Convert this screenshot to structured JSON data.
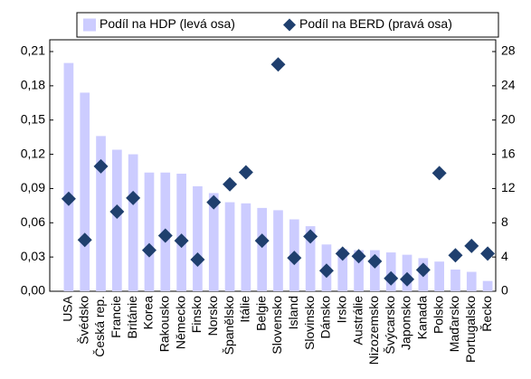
{
  "chart_data": {
    "type": "bar",
    "categories": [
      "USA",
      "Švédsko",
      "Česká rep.",
      "Francie",
      "Británie",
      "Korea",
      "Rakousko",
      "Německo",
      "Finsko",
      "Norsko",
      "Španělsko",
      "Itálie",
      "Belgie",
      "Slovensko",
      "Island",
      "Slovinsko",
      "Dánsko",
      "Irsko",
      "Austrálie",
      "Nizozemsko",
      "Švýcarsko",
      "Japonsko",
      "Kanada",
      "Polsko",
      "Maďarsko",
      "Portugalsko",
      "Řecko"
    ],
    "series": [
      {
        "name": "Podíl na HDP (levá osa)",
        "type": "bar",
        "color": "#ccccff",
        "values": [
          0.2,
          0.174,
          0.136,
          0.124,
          0.12,
          0.104,
          0.104,
          0.103,
          0.092,
          0.086,
          0.078,
          0.077,
          0.073,
          0.071,
          0.063,
          0.057,
          0.041,
          0.037,
          0.036,
          0.036,
          0.034,
          0.032,
          0.029,
          0.026,
          0.019,
          0.017,
          0.009
        ]
      },
      {
        "name": "Podíl na BERD (pravá osa)",
        "type": "scatter",
        "axis": "y2",
        "color": "#1f3f6e",
        "values": [
          10.8,
          6.0,
          14.6,
          9.3,
          10.9,
          4.8,
          6.5,
          5.9,
          3.7,
          10.4,
          12.5,
          13.9,
          5.9,
          26.5,
          3.9,
          6.4,
          2.4,
          4.4,
          4.1,
          3.5,
          1.5,
          1.4,
          2.5,
          13.8,
          4.2,
          5.3,
          4.4
        ]
      }
    ],
    "ylim": [
      0,
      0.21
    ],
    "yticks": [
      {
        "value": 0,
        "label": "0,00"
      },
      {
        "value": 0.03,
        "label": "0,03"
      },
      {
        "value": 0.06,
        "label": "0,06"
      },
      {
        "value": 0.09,
        "label": "0,09"
      },
      {
        "value": 0.12,
        "label": "0,12"
      },
      {
        "value": 0.15,
        "label": "0,15"
      },
      {
        "value": 0.18,
        "label": "0,18"
      },
      {
        "value": 0.21,
        "label": "0,21"
      }
    ],
    "y2lim": [
      0,
      28
    ],
    "y2ticks": [
      0,
      4,
      8,
      12,
      16,
      20,
      24,
      28
    ],
    "grid": false
  }
}
